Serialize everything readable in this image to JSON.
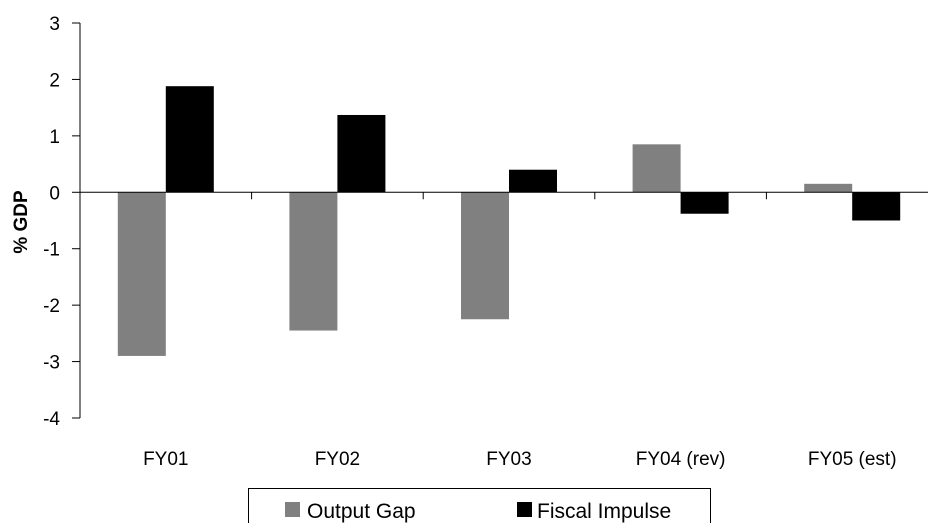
{
  "chart_data": {
    "type": "bar",
    "categories": [
      "FY01",
      "FY02",
      "FY03",
      "FY04 (rev)",
      "FY05 (est)"
    ],
    "series": [
      {
        "name": "Output Gap",
        "color": "#808080",
        "values": [
          -2.9,
          -2.45,
          -2.25,
          0.85,
          0.15
        ]
      },
      {
        "name": "Fiscal Impulse",
        "color": "#000000",
        "values": [
          1.88,
          1.37,
          0.4,
          -0.38,
          -0.5
        ]
      }
    ],
    "ylabel": "% GDP",
    "ylim": [
      -4,
      3
    ],
    "yticks": [
      3,
      2,
      1,
      0,
      -1,
      -2,
      -3,
      -4
    ],
    "grid": false,
    "legend_position": "bottom"
  }
}
